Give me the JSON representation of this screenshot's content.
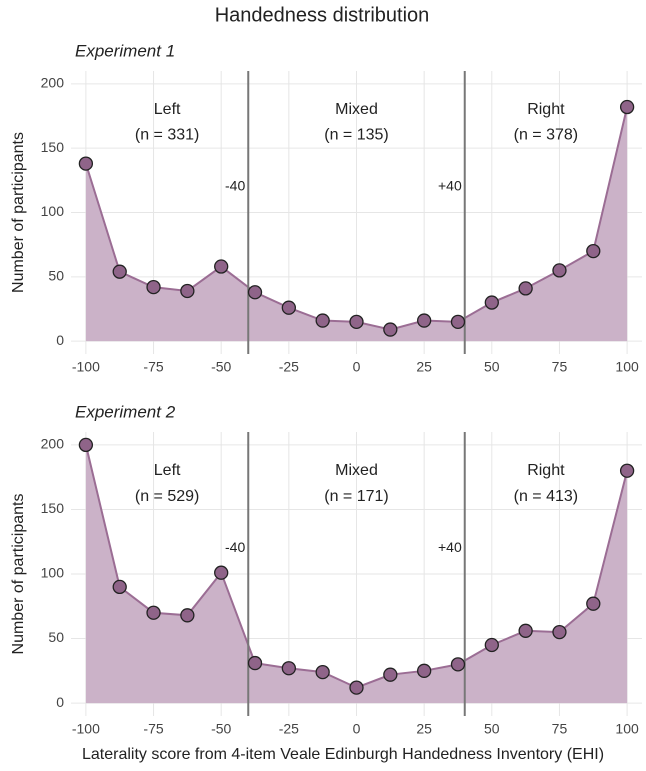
{
  "title": "Handedness distribution",
  "x_label": "Laterality score from 4-item Veale Edinburgh Handedness Inventory (EHI)",
  "chart_data": [
    {
      "type": "area",
      "title": "Experiment 1",
      "y_label": "Number of participants",
      "color": "#cbb2c8",
      "line_color": "#9b6d94",
      "marker_color": "#8f6489",
      "x": [
        -100,
        -87.5,
        -75,
        -62.5,
        -50,
        -37.5,
        -25,
        -12.5,
        0,
        12.5,
        25,
        37.5,
        50,
        62.5,
        75,
        87.5,
        100
      ],
      "values": [
        138,
        54,
        42,
        39,
        58,
        38,
        26,
        16,
        15,
        9,
        16,
        15,
        30,
        41,
        55,
        70,
        182
      ],
      "xlim": [
        -105.5,
        105.5
      ],
      "ylim": [
        -10,
        210
      ],
      "xticks": [
        -100,
        -75,
        -50,
        -25,
        0,
        25,
        50,
        75,
        100
      ],
      "yticks": [
        0,
        50,
        100,
        150,
        200
      ],
      "grid": true,
      "vlines": [
        {
          "value": -40,
          "label": "-40"
        },
        {
          "value": 40,
          "label": "+40"
        }
      ],
      "regions": [
        {
          "label": "Left",
          "n": "(n = 331)"
        },
        {
          "label": "Mixed",
          "n": "(n = 135)"
        },
        {
          "label": "Right",
          "n": "(n = 378)"
        }
      ]
    },
    {
      "type": "area",
      "title": "Experiment 2",
      "y_label": "Number of participants",
      "color": "#cbb2c8",
      "line_color": "#9b6d94",
      "marker_color": "#8f6489",
      "x": [
        -100,
        -87.5,
        -75,
        -62.5,
        -50,
        -37.5,
        -25,
        -12.5,
        0,
        12.5,
        25,
        37.5,
        50,
        62.5,
        75,
        87.5,
        100
      ],
      "values": [
        200,
        90,
        70,
        68,
        101,
        31,
        27,
        24,
        12,
        22,
        25,
        30,
        45,
        56,
        55,
        77,
        180
      ],
      "xlim": [
        -105.5,
        105.5
      ],
      "ylim": [
        -10,
        210
      ],
      "xticks": [
        -100,
        -75,
        -50,
        -25,
        0,
        25,
        50,
        75,
        100
      ],
      "yticks": [
        0,
        50,
        100,
        150,
        200
      ],
      "grid": true,
      "vlines": [
        {
          "value": -40,
          "label": "-40"
        },
        {
          "value": 40,
          "label": "+40"
        }
      ],
      "regions": [
        {
          "label": "Left",
          "n": "(n = 529)"
        },
        {
          "label": "Mixed",
          "n": "(n = 171)"
        },
        {
          "label": "Right",
          "n": "(n = 413)"
        }
      ]
    }
  ]
}
